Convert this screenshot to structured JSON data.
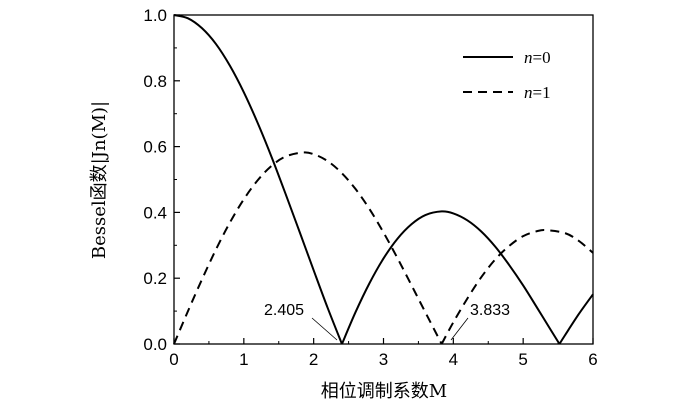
{
  "chart_data": {
    "type": "line",
    "title": "",
    "xlabel": "相位调制系数M",
    "ylabel": "Bessel函数|Jn(M)|",
    "xlim": [
      0,
      6
    ],
    "ylim": [
      0,
      1.0
    ],
    "x_ticks": [
      "0",
      "1",
      "2",
      "3",
      "4",
      "5",
      "6"
    ],
    "y_ticks": [
      "0.0",
      "0.2",
      "0.4",
      "0.6",
      "0.8",
      "1.0"
    ],
    "grid": false,
    "legend_position": "top-right",
    "series": [
      {
        "name": "n=0",
        "style": "solid",
        "x": [
          0,
          0.2,
          0.4,
          0.6,
          0.8,
          1.0,
          1.2,
          1.4,
          1.6,
          1.8,
          2.0,
          2.2,
          2.405,
          2.6,
          2.8,
          3.0,
          3.2,
          3.4,
          3.6,
          3.832,
          4.0,
          4.2,
          4.4,
          4.6,
          4.8,
          5.0,
          5.2,
          5.4,
          5.52,
          5.6,
          5.8,
          6.0
        ],
        "values": [
          1.0,
          0.99,
          0.96,
          0.912,
          0.846,
          0.765,
          0.671,
          0.567,
          0.455,
          0.34,
          0.224,
          0.11,
          0.0,
          0.097,
          0.185,
          0.26,
          0.32,
          0.364,
          0.392,
          0.403,
          0.397,
          0.376,
          0.342,
          0.296,
          0.24,
          0.178,
          0.11,
          0.041,
          0.0,
          0.027,
          0.092,
          0.151
        ]
      },
      {
        "name": "n=1",
        "style": "dashed",
        "x": [
          0,
          0.2,
          0.4,
          0.6,
          0.8,
          1.0,
          1.2,
          1.4,
          1.6,
          1.841,
          2.0,
          2.2,
          2.4,
          2.6,
          2.8,
          3.0,
          3.2,
          3.4,
          3.6,
          3.833,
          4.0,
          4.2,
          4.4,
          4.6,
          4.8,
          5.0,
          5.2,
          5.331,
          5.6,
          5.8,
          6.0
        ],
        "values": [
          0.0,
          0.1,
          0.196,
          0.287,
          0.369,
          0.44,
          0.498,
          0.542,
          0.57,
          0.582,
          0.577,
          0.556,
          0.52,
          0.471,
          0.41,
          0.339,
          0.261,
          0.179,
          0.096,
          0.0,
          0.066,
          0.138,
          0.203,
          0.257,
          0.298,
          0.328,
          0.343,
          0.346,
          0.337,
          0.313,
          0.277
        ]
      }
    ],
    "annotations": [
      {
        "text": "2.405",
        "x": 2.405,
        "y": 0.0
      },
      {
        "text": "3.833",
        "x": 3.833,
        "y": 0.0
      }
    ],
    "colors": {
      "line": "#000000",
      "axis": "#000000"
    }
  }
}
